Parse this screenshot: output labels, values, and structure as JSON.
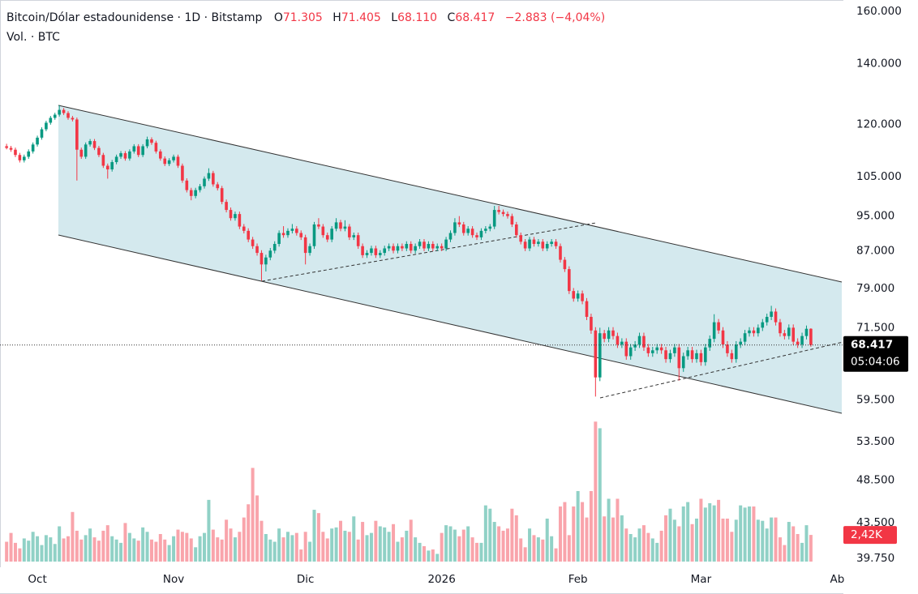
{
  "chart_data": {
    "type": "candlestick",
    "title": "Bitcoin/Dólar estadounidense · 1D · Bitstamp",
    "header_fields": [
      {
        "key": "O",
        "value": "71.305"
      },
      {
        "key": "H",
        "value": "71.405"
      },
      {
        "key": "L",
        "value": "68.110"
      },
      {
        "key": "C",
        "value": "68.417"
      }
    ],
    "change": "−2.883 (−4,04%)",
    "volume_title": "Vol. · BTC",
    "last_price_label": "68.417",
    "countdown": "05:04:06",
    "volume_label": "2,42K",
    "colors": {
      "up": "#089981",
      "down": "#f23645"
    },
    "log_scale": true,
    "ylim": [
      38850,
      164700
    ],
    "yticks": [
      {
        "value": 160000,
        "label": "160.000"
      },
      {
        "value": 140000,
        "label": "140.000"
      },
      {
        "value": 120000,
        "label": "120.000"
      },
      {
        "value": 105000,
        "label": "105.000"
      },
      {
        "value": 95000,
        "label": "95.000"
      },
      {
        "value": 87000,
        "label": "87.000"
      },
      {
        "value": 79000,
        "label": "79.000"
      },
      {
        "value": 71500,
        "label": "71.500"
      },
      {
        "value": 59500,
        "label": "59.500"
      },
      {
        "value": 53500,
        "label": "53.500"
      },
      {
        "value": 48500,
        "label": "48.500"
      },
      {
        "value": 43500,
        "label": "43.500"
      },
      {
        "value": 39750,
        "label": "39.750"
      }
    ],
    "xlim": [
      -1.5,
      190.4
    ],
    "xticks": [
      {
        "value": 7,
        "label": "Oct"
      },
      {
        "value": 38,
        "label": "Nov"
      },
      {
        "value": 68,
        "label": "Dic"
      },
      {
        "value": 99,
        "label": "2026"
      },
      {
        "value": 130,
        "label": "Feb"
      },
      {
        "value": 158,
        "label": "Mar"
      },
      {
        "value": 189,
        "label": "Ab"
      }
    ],
    "ohlc": [
      [
        113500,
        114200,
        112600,
        113000
      ],
      [
        113000,
        113600,
        111900,
        112500
      ],
      [
        112500,
        113100,
        110400,
        111000
      ],
      [
        111000,
        111600,
        108900,
        109500
      ],
      [
        109500,
        111100,
        108900,
        110500
      ],
      [
        110500,
        112600,
        109900,
        112000
      ],
      [
        112000,
        114600,
        111400,
        114000
      ],
      [
        114000,
        116600,
        113400,
        116000
      ],
      [
        116000,
        119100,
        115400,
        118500
      ],
      [
        118500,
        121100,
        117900,
        120500
      ],
      [
        120500,
        122600,
        119900,
        122000
      ],
      [
        122000,
        123600,
        121400,
        123000
      ],
      [
        123000,
        126000,
        122400,
        124500
      ],
      [
        124500,
        125100,
        122900,
        123500
      ],
      [
        123500,
        124100,
        121400,
        122000
      ],
      [
        122000,
        122600,
        120900,
        121500
      ],
      [
        121500,
        122100,
        104000,
        112500
      ],
      [
        112500,
        113100,
        109900,
        110500
      ],
      [
        110500,
        114600,
        109900,
        114000
      ],
      [
        114000,
        115600,
        113400,
        115000
      ],
      [
        115000,
        115600,
        112400,
        113000
      ],
      [
        113000,
        113600,
        110400,
        111000
      ],
      [
        111000,
        111600,
        107400,
        108000
      ],
      [
        108000,
        108600,
        104500,
        107000
      ],
      [
        107000,
        109600,
        106400,
        109000
      ],
      [
        109000,
        111100,
        108400,
        110500
      ],
      [
        110500,
        112100,
        109900,
        111500
      ],
      [
        111500,
        112100,
        109400,
        110000
      ],
      [
        110000,
        112600,
        109400,
        112000
      ],
      [
        112000,
        114100,
        111400,
        113500
      ],
      [
        113500,
        114100,
        110400,
        111000
      ],
      [
        111000,
        114100,
        110400,
        113500
      ],
      [
        113500,
        116300,
        112900,
        115500
      ],
      [
        115500,
        116100,
        113900,
        114500
      ],
      [
        114500,
        115100,
        111400,
        112000
      ],
      [
        112000,
        112600,
        109400,
        110000
      ],
      [
        110000,
        110600,
        107900,
        108500
      ],
      [
        108500,
        110100,
        107900,
        109500
      ],
      [
        109500,
        111100,
        108900,
        110500
      ],
      [
        110500,
        111100,
        107400,
        108000
      ],
      [
        108000,
        108600,
        103400,
        104000
      ],
      [
        104000,
        104600,
        100900,
        101500
      ],
      [
        101500,
        102100,
        98900,
        100000
      ],
      [
        100000,
        102100,
        99400,
        101500
      ],
      [
        101500,
        103100,
        100900,
        102500
      ],
      [
        102500,
        105100,
        101900,
        104500
      ],
      [
        104500,
        107300,
        103900,
        106000
      ],
      [
        106000,
        106600,
        102400,
        103000
      ],
      [
        103000,
        103600,
        101400,
        102000
      ],
      [
        102000,
        102600,
        97900,
        98500
      ],
      [
        98500,
        99100,
        95900,
        96500
      ],
      [
        96500,
        97100,
        93900,
        94500
      ],
      [
        94500,
        96100,
        93900,
        95500
      ],
      [
        95500,
        96100,
        91900,
        92500
      ],
      [
        92500,
        93100,
        90900,
        91500
      ],
      [
        91500,
        92100,
        88900,
        89500
      ],
      [
        89500,
        90100,
        87400,
        88000
      ],
      [
        88000,
        88600,
        85900,
        86500
      ],
      [
        86500,
        87100,
        80600,
        84000
      ],
      [
        84000,
        86100,
        82500,
        85500
      ],
      [
        85500,
        87600,
        84900,
        87000
      ],
      [
        87000,
        89100,
        86400,
        88500
      ],
      [
        88500,
        91600,
        87900,
        91000
      ],
      [
        91000,
        92600,
        89900,
        90500
      ],
      [
        90500,
        92100,
        89900,
        91500
      ],
      [
        91500,
        93100,
        90900,
        92000
      ],
      [
        92000,
        92600,
        90400,
        91000
      ],
      [
        91000,
        91600,
        89400,
        90000
      ],
      [
        90000,
        90600,
        84000,
        86500
      ],
      [
        86500,
        88600,
        85900,
        88000
      ],
      [
        88000,
        93600,
        87400,
        93000
      ],
      [
        93000,
        94500,
        91900,
        92500
      ],
      [
        92500,
        93100,
        89900,
        90500
      ],
      [
        90500,
        91100,
        88900,
        89500
      ],
      [
        89500,
        92600,
        88900,
        92000
      ],
      [
        92000,
        94500,
        91400,
        93500
      ],
      [
        93500,
        94100,
        91400,
        92000
      ],
      [
        92000,
        94000,
        91400,
        92500
      ],
      [
        92500,
        93100,
        89400,
        90000
      ],
      [
        90000,
        91100,
        89400,
        90500
      ],
      [
        90500,
        91100,
        87400,
        88000
      ],
      [
        88000,
        88600,
        85400,
        86000
      ],
      [
        86000,
        87100,
        85400,
        86500
      ],
      [
        86500,
        88100,
        85900,
        87500
      ],
      [
        87500,
        88100,
        85400,
        86000
      ],
      [
        86000,
        87100,
        85400,
        86500
      ],
      [
        86500,
        88100,
        85900,
        87500
      ],
      [
        87500,
        88600,
        86900,
        88000
      ],
      [
        88000,
        88600,
        86400,
        87000
      ],
      [
        87000,
        88600,
        86400,
        88000
      ],
      [
        88000,
        88600,
        86900,
        87500
      ],
      [
        87500,
        89100,
        86900,
        88500
      ],
      [
        88500,
        89100,
        86400,
        87000
      ],
      [
        87000,
        88600,
        86400,
        88000
      ],
      [
        88000,
        89600,
        87400,
        89000
      ],
      [
        89000,
        89600,
        86900,
        87500
      ],
      [
        87500,
        89100,
        86900,
        88500
      ],
      [
        88500,
        89100,
        86900,
        87500
      ],
      [
        87500,
        88600,
        86900,
        88000
      ],
      [
        88000,
        88600,
        86900,
        87500
      ],
      [
        87500,
        90100,
        86900,
        89500
      ],
      [
        89500,
        91600,
        88900,
        91000
      ],
      [
        91000,
        94500,
        90400,
        93500
      ],
      [
        93500,
        95000,
        92400,
        93000
      ],
      [
        93000,
        93600,
        90400,
        91000
      ],
      [
        91000,
        92600,
        90400,
        92000
      ],
      [
        92000,
        92600,
        89900,
        90500
      ],
      [
        90500,
        91100,
        89400,
        90000
      ],
      [
        90000,
        92100,
        89400,
        91500
      ],
      [
        91500,
        92600,
        90900,
        92000
      ],
      [
        92000,
        93100,
        91400,
        92500
      ],
      [
        92500,
        97500,
        91900,
        96500
      ],
      [
        96500,
        97500,
        95400,
        96000
      ],
      [
        96000,
        96600,
        94900,
        95500
      ],
      [
        95500,
        96100,
        94400,
        95000
      ],
      [
        95000,
        95600,
        92400,
        93000
      ],
      [
        93000,
        93600,
        89900,
        90500
      ],
      [
        90500,
        91100,
        88400,
        89000
      ],
      [
        89000,
        89600,
        86900,
        87500
      ],
      [
        87500,
        90100,
        86900,
        89500
      ],
      [
        89500,
        90100,
        87900,
        88500
      ],
      [
        88500,
        89600,
        87900,
        89000
      ],
      [
        89000,
        89600,
        86900,
        87500
      ],
      [
        87500,
        89100,
        86900,
        88500
      ],
      [
        88500,
        89600,
        87900,
        89000
      ],
      [
        89000,
        89600,
        87400,
        88000
      ],
      [
        88000,
        88600,
        84400,
        85000
      ],
      [
        85000,
        85600,
        82400,
        83000
      ],
      [
        83000,
        83600,
        77900,
        78500
      ],
      [
        78500,
        79100,
        76400,
        77000
      ],
      [
        77000,
        78600,
        76400,
        78000
      ],
      [
        78000,
        78600,
        75900,
        76500
      ],
      [
        76500,
        77100,
        72900,
        73500
      ],
      [
        73500,
        74100,
        70400,
        71000
      ],
      [
        71000,
        71600,
        60000,
        63000
      ],
      [
        63000,
        71500,
        62400,
        70500
      ],
      [
        70500,
        71100,
        68900,
        69500
      ],
      [
        69500,
        71600,
        68900,
        71000
      ],
      [
        71000,
        71600,
        69400,
        70000
      ],
      [
        70000,
        70600,
        67900,
        68500
      ],
      [
        68500,
        69600,
        67900,
        69000
      ],
      [
        69000,
        69600,
        65900,
        66500
      ],
      [
        66500,
        68600,
        65900,
        68000
      ],
      [
        68000,
        69100,
        67400,
        68500
      ],
      [
        68500,
        70600,
        67900,
        70000
      ],
      [
        70000,
        70600,
        67400,
        68000
      ],
      [
        68000,
        68600,
        66400,
        67000
      ],
      [
        67000,
        68100,
        66400,
        67500
      ],
      [
        67500,
        68600,
        66900,
        68000
      ],
      [
        68000,
        68600,
        66900,
        67500
      ],
      [
        67500,
        68100,
        65400,
        66000
      ],
      [
        66000,
        67600,
        65400,
        67000
      ],
      [
        67000,
        68600,
        66400,
        68000
      ],
      [
        68000,
        68600,
        62500,
        64500
      ],
      [
        64500,
        67100,
        63900,
        66500
      ],
      [
        66500,
        68100,
        65900,
        67500
      ],
      [
        67500,
        68100,
        65400,
        66000
      ],
      [
        66000,
        67600,
        65400,
        67000
      ],
      [
        67000,
        67600,
        64900,
        65500
      ],
      [
        65500,
        68600,
        64900,
        68000
      ],
      [
        68000,
        70100,
        67400,
        69500
      ],
      [
        69500,
        74000,
        68900,
        72500
      ],
      [
        72500,
        73100,
        70400,
        71000
      ],
      [
        71000,
        71600,
        67900,
        68500
      ],
      [
        68500,
        69100,
        66400,
        67000
      ],
      [
        67000,
        67600,
        65400,
        66000
      ],
      [
        66000,
        69100,
        65400,
        68500
      ],
      [
        68500,
        69600,
        67900,
        69000
      ],
      [
        69000,
        71100,
        68400,
        70500
      ],
      [
        70500,
        71600,
        69900,
        71000
      ],
      [
        71000,
        71600,
        69900,
        70500
      ],
      [
        70500,
        72100,
        69900,
        71500
      ],
      [
        71500,
        73100,
        70900,
        72500
      ],
      [
        72500,
        74100,
        71900,
        73500
      ],
      [
        73500,
        75600,
        72900,
        74500
      ],
      [
        74500,
        75100,
        71900,
        72500
      ],
      [
        72500,
        73100,
        69900,
        70500
      ],
      [
        70500,
        71100,
        69400,
        70000
      ],
      [
        70000,
        72100,
        69400,
        71500
      ],
      [
        71500,
        72100,
        68400,
        69000
      ],
      [
        69000,
        69600,
        67900,
        68500
      ],
      [
        68500,
        70600,
        67900,
        70000
      ],
      [
        70000,
        71900,
        69400,
        71305
      ],
      [
        71305,
        71405,
        68110,
        68417
      ]
    ],
    "volume": [
      1800,
      2600,
      1700,
      1200,
      2100,
      1900,
      2700,
      2300,
      1500,
      2400,
      2200,
      1600,
      3200,
      2100,
      2300,
      4500,
      2800,
      2000,
      2400,
      3000,
      2200,
      1900,
      2800,
      3300,
      2300,
      2000,
      1700,
      3500,
      2600,
      2100,
      1900,
      3100,
      2700,
      2000,
      1800,
      2500,
      2000,
      1500,
      2300,
      2900,
      2700,
      2600,
      2100,
      1300,
      2300,
      2600,
      5600,
      2900,
      2200,
      2000,
      3800,
      3000,
      2200,
      2700,
      4000,
      5200,
      8500,
      6000,
      3700,
      2500,
      2000,
      1800,
      3000,
      2200,
      2700,
      2400,
      2600,
      1100,
      2700,
      1800,
      4700,
      4400,
      2700,
      2100,
      3000,
      3100,
      3700,
      2800,
      2700,
      4100,
      2000,
      3600,
      2400,
      2600,
      3700,
      3200,
      3100,
      2700,
      3400,
      1800,
      2200,
      2800,
      3800,
      2200,
      1700,
      1400,
      1000,
      1100,
      700,
      2600,
      3300,
      3200,
      2900,
      2300,
      2900,
      3200,
      2200,
      1700,
      1700,
      5100,
      4800,
      3600,
      3200,
      2800,
      3000,
      4800,
      4200,
      2100,
      1300,
      3000,
      2400,
      2200,
      2000,
      3900,
      2300,
      1200,
      5000,
      5400,
      2400,
      5000,
      6400,
      5400,
      4000,
      6400,
      12700,
      12100,
      4100,
      5700,
      4000,
      5700,
      4200,
      3000,
      2500,
      2200,
      3000,
      3300,
      2600,
      2100,
      1700,
      2800,
      4200,
      4800,
      3800,
      3200,
      5000,
      5400,
      3400,
      3900,
      5700,
      4900,
      5300,
      5100,
      5600,
      3900,
      3900,
      2700,
      3800,
      5100,
      4900,
      5000,
      5000,
      3800,
      3700,
      3000,
      4000,
      4000,
      2200,
      1500,
      3600,
      3200,
      2500,
      1700,
      3300,
      2420
    ]
  }
}
